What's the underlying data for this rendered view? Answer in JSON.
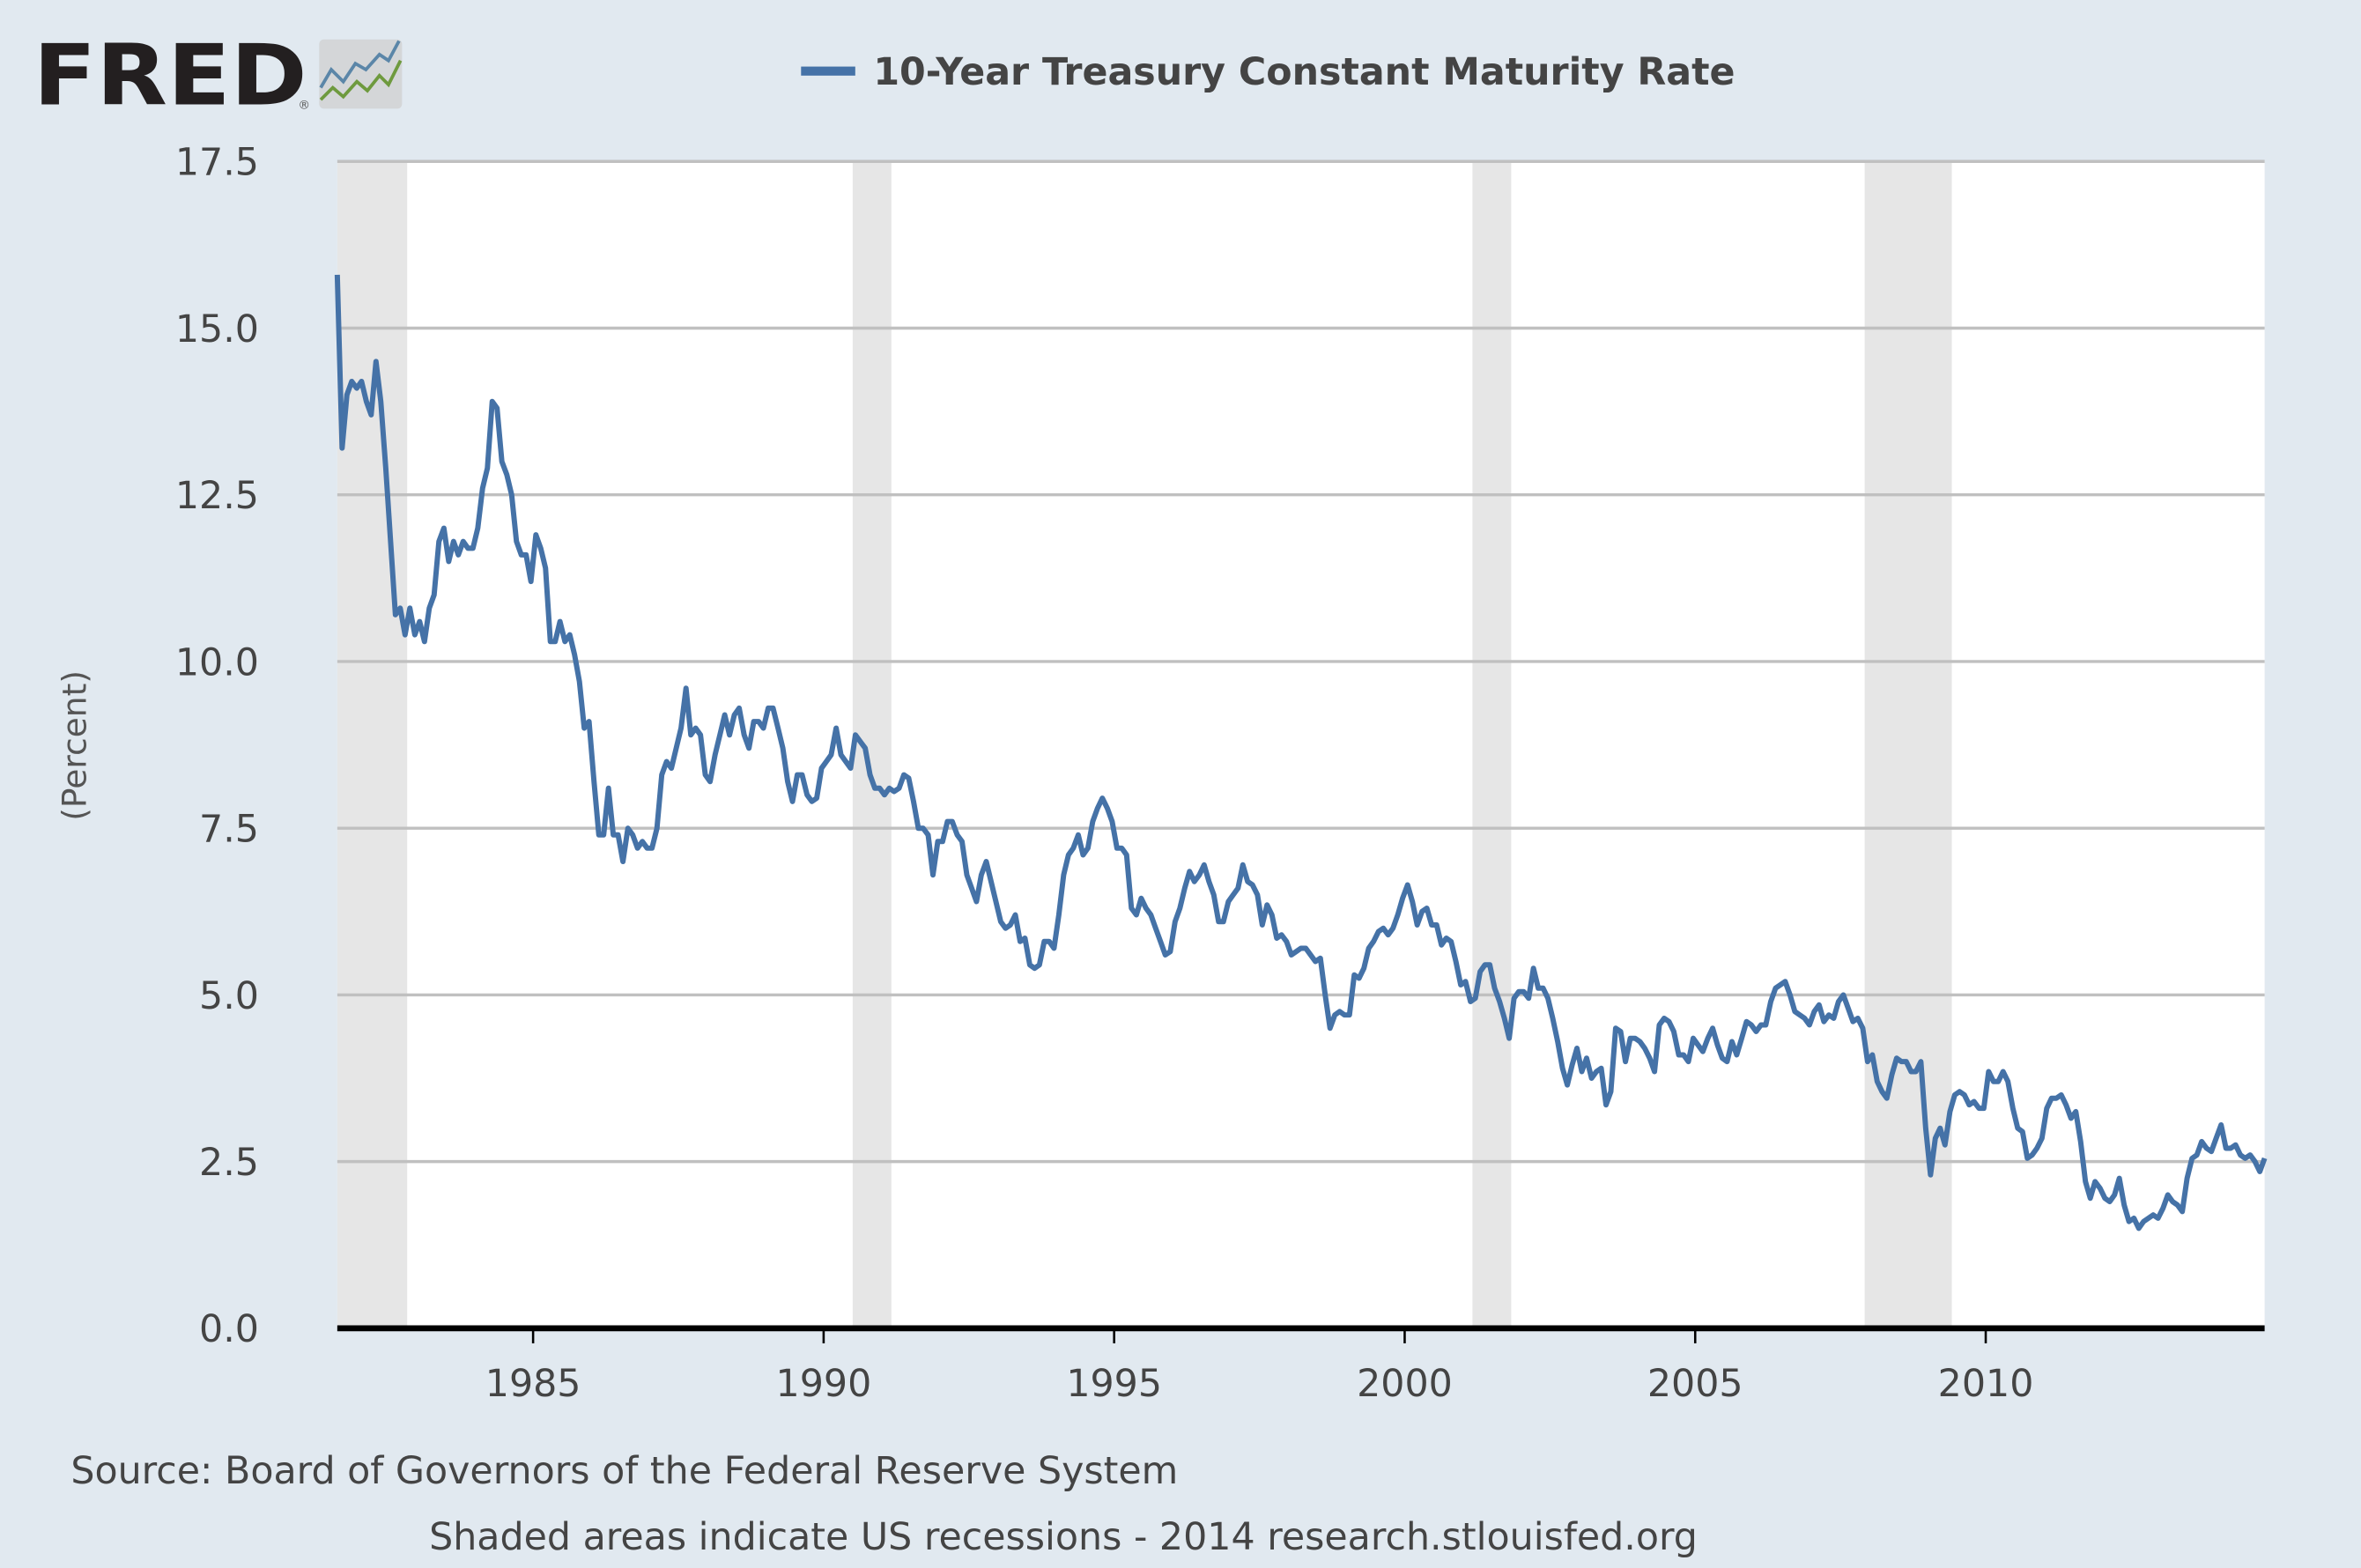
{
  "logo": {
    "text": "FRED",
    "registered": "®"
  },
  "colors": {
    "background": "#e1e9f0",
    "series": "#4572a7",
    "recession": "#e6e6e6",
    "grid": "#c0c0c0",
    "text": "#444444"
  },
  "chart_data": {
    "type": "line",
    "title": "10-Year Treasury Constant Maturity Rate",
    "ylabel": "(Percent)",
    "xlabel": "",
    "ylim": [
      0,
      17.5
    ],
    "xlim": [
      "1981-09",
      "2014-11"
    ],
    "yticks": [
      "0.0",
      "2.5",
      "5.0",
      "7.5",
      "10.0",
      "12.5",
      "15.0",
      "17.5"
    ],
    "xticks": [
      "1985",
      "1990",
      "1995",
      "2000",
      "2005",
      "2010"
    ],
    "grid": true,
    "legend": "top-center",
    "recessions": [
      [
        "1981-08",
        "1982-11"
      ],
      [
        "1990-07",
        "1991-03"
      ],
      [
        "2001-03",
        "2001-11"
      ],
      [
        "2007-12",
        "2009-06"
      ]
    ],
    "series": [
      {
        "name": "10-Year Treasury Constant Maturity Rate",
        "frequency": "monthly",
        "values_by_year": {
          "1981": [
            null,
            null,
            null,
            null,
            null,
            null,
            null,
            null,
            15.8,
            13.2,
            14.0,
            14.2
          ],
          "1982": [
            14.1,
            14.2,
            13.9,
            13.7,
            14.5,
            13.9,
            12.9,
            11.8,
            10.7,
            10.8,
            10.4,
            10.8
          ],
          "1983": [
            10.4,
            10.6,
            10.3,
            10.8,
            11.0,
            11.8,
            12.0,
            11.5,
            11.8,
            11.6,
            11.8,
            11.7
          ],
          "1984": [
            11.7,
            12.0,
            12.6,
            12.9,
            13.9,
            13.8,
            13.0,
            12.8,
            12.5,
            11.8,
            11.6,
            11.6
          ],
          "1985": [
            11.2,
            11.9,
            11.7,
            11.4,
            10.3,
            10.3,
            10.6,
            10.3,
            10.4,
            10.1,
            9.7,
            9.0
          ],
          "1986": [
            9.1,
            8.2,
            7.4,
            7.4,
            8.1,
            7.4,
            7.4,
            7.0,
            7.5,
            7.4,
            7.2,
            7.3
          ],
          "1987": [
            7.2,
            7.2,
            7.5,
            8.3,
            8.5,
            8.4,
            8.7,
            9.0,
            9.6,
            8.9,
            9.0,
            8.9
          ],
          "1988": [
            8.3,
            8.2,
            8.6,
            8.9,
            9.2,
            8.9,
            9.2,
            9.3,
            8.9,
            8.7,
            9.1,
            9.1
          ],
          "1989": [
            9.0,
            9.3,
            9.3,
            9.0,
            8.7,
            8.2,
            7.9,
            8.3,
            8.3,
            8.0,
            7.9,
            7.95
          ],
          "1990": [
            8.4,
            8.5,
            8.6,
            9.0,
            8.6,
            8.5,
            8.4,
            8.9,
            8.8,
            8.7,
            8.3,
            8.1
          ],
          "1991": [
            8.1,
            8.0,
            8.1,
            8.05,
            8.1,
            8.3,
            8.25,
            7.9,
            7.5,
            7.5,
            7.4,
            6.8
          ],
          "1992": [
            7.3,
            7.3,
            7.6,
            7.6,
            7.4,
            7.3,
            6.8,
            6.6,
            6.4,
            6.8,
            7.0,
            6.7
          ],
          "1993": [
            6.4,
            6.1,
            6.0,
            6.05,
            6.2,
            5.8,
            5.85,
            5.45,
            5.4,
            5.45,
            5.8,
            5.8
          ],
          "1994": [
            5.7,
            6.2,
            6.8,
            7.1,
            7.2,
            7.4,
            7.1,
            7.2,
            7.6,
            7.8,
            7.95,
            7.8
          ],
          "1995": [
            7.6,
            7.2,
            7.2,
            7.1,
            6.3,
            6.2,
            6.45,
            6.3,
            6.2,
            6.0,
            5.8,
            5.6
          ],
          "1996": [
            5.65,
            6.1,
            6.3,
            6.6,
            6.85,
            6.7,
            6.8,
            6.95,
            6.7,
            6.5,
            6.1,
            6.1
          ],
          "1997": [
            6.4,
            6.5,
            6.6,
            6.95,
            6.7,
            6.65,
            6.5,
            6.05,
            6.35,
            6.2,
            5.85,
            5.9
          ],
          "1998": [
            5.8,
            5.6,
            5.65,
            5.7,
            5.7,
            5.6,
            5.5,
            5.55,
            5.0,
            4.5,
            4.7,
            4.75
          ],
          "1999": [
            4.7,
            4.7,
            5.3,
            5.25,
            5.4,
            5.7,
            5.8,
            5.95,
            6.0,
            5.9,
            6.0,
            6.2
          ],
          "2000": [
            6.45,
            6.65,
            6.4,
            6.05,
            6.25,
            6.3,
            6.05,
            6.05,
            5.75,
            5.85,
            5.8,
            5.5
          ],
          "2001": [
            5.15,
            5.2,
            4.9,
            4.95,
            5.35,
            5.45,
            5.45,
            5.1,
            4.9,
            4.65,
            4.35,
            4.95
          ],
          "2002": [
            5.05,
            5.05,
            4.95,
            5.4,
            5.1,
            5.1,
            4.95,
            4.65,
            4.3,
            3.9,
            3.65,
            3.95
          ],
          "2003": [
            4.2,
            3.85,
            4.05,
            3.75,
            3.85,
            3.9,
            3.35,
            3.55,
            4.5,
            4.45,
            4.0,
            4.35
          ],
          "2004": [
            4.35,
            4.3,
            4.2,
            4.05,
            3.85,
            4.55,
            4.65,
            4.6,
            4.45,
            4.1,
            4.1,
            4.0
          ],
          "2005": [
            4.35,
            4.25,
            4.15,
            4.35,
            4.5,
            4.25,
            4.05,
            4.0,
            4.3,
            4.1,
            4.35,
            4.6
          ],
          "2006": [
            4.55,
            4.45,
            4.55,
            4.55,
            4.9,
            5.1,
            5.15,
            5.2,
            5.0,
            4.75,
            4.7,
            4.65
          ],
          "2007": [
            4.55,
            4.75,
            4.85,
            4.6,
            4.7,
            4.65,
            4.9,
            5.0,
            4.8,
            4.6,
            4.65,
            4.5
          ],
          "2008": [
            4.0,
            4.1,
            3.7,
            3.55,
            3.45,
            3.8,
            4.05,
            4.0,
            4.0,
            3.85,
            3.85,
            4.0
          ],
          "2009": [
            3.0,
            2.3,
            2.85,
            3.0,
            2.75,
            3.25,
            3.5,
            3.55,
            3.5,
            3.35,
            3.4,
            3.3
          ],
          "2010": [
            3.3,
            3.85,
            3.7,
            3.7,
            3.85,
            3.7,
            3.3,
            3.0,
            2.95,
            2.55,
            2.6,
            2.7
          ],
          "2011": [
            2.85,
            3.3,
            3.45,
            3.45,
            3.5,
            3.35,
            3.15,
            3.25,
            2.8,
            2.2,
            1.95,
            2.2
          ],
          "2012": [
            2.1,
            1.95,
            1.9,
            2.0,
            2.25,
            1.85,
            1.6,
            1.65,
            1.5,
            1.6,
            1.65,
            1.7
          ],
          "2013": [
            1.65,
            1.8,
            2.0,
            1.9,
            1.85,
            1.75,
            2.25,
            2.55,
            2.6,
            2.8,
            2.7,
            2.65
          ],
          "2014": [
            2.85,
            3.05,
            2.7,
            2.7,
            2.75,
            2.6,
            2.55,
            2.6,
            2.5,
            2.35,
            2.55
          ]
        }
      }
    ]
  },
  "footer": {
    "source": "Source: Board of Governors of the Federal Reserve System",
    "note": "Shaded areas indicate US recessions - 2014 research.stlouisfed.org"
  }
}
